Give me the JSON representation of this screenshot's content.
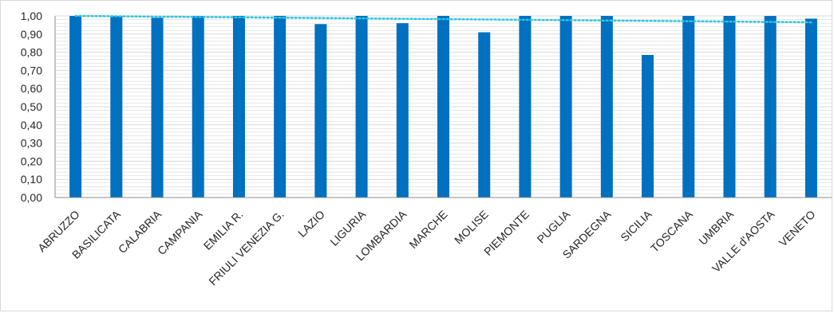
{
  "chart_data": {
    "type": "bar",
    "categories": [
      "ABRUZZO",
      "BASILICATA",
      "CALABRIA",
      "CAMPANIA",
      "EMILIA R.",
      "FRIULI VENEZIA G.",
      "LAZIO",
      "LIGURIA",
      "LOMBARDIA",
      "MARCHE",
      "MOLISE",
      "PIEMONTE",
      "PUGLIA",
      "SARDEGNA",
      "SICILIA",
      "TOSCANA",
      "UMBRIA",
      "VALLE d'AOSTA",
      "VENETO"
    ],
    "values": [
      1.0,
      1.0,
      0.99,
      1.0,
      1.0,
      1.0,
      0.955,
      1.0,
      0.96,
      1.0,
      0.91,
      1.0,
      1.0,
      1.0,
      0.785,
      1.0,
      1.0,
      1.0,
      0.985
    ],
    "yticks": [
      "0,00",
      "0,10",
      "0,20",
      "0,30",
      "0,40",
      "0,50",
      "0,60",
      "0,70",
      "0,80",
      "0,90",
      "1,00"
    ],
    "ylim": [
      0,
      1.0
    ],
    "trendline": {
      "style": "dotted",
      "start": 1.0,
      "end": 0.965
    },
    "title": "",
    "xlabel": "",
    "ylabel": "",
    "legend": "none",
    "grid": "horizontal minor",
    "colors": {
      "bar": "#0070C0",
      "trend": "#2DC5DE",
      "grid": "#d9d9d9",
      "axis": "#8c8c8c"
    }
  }
}
